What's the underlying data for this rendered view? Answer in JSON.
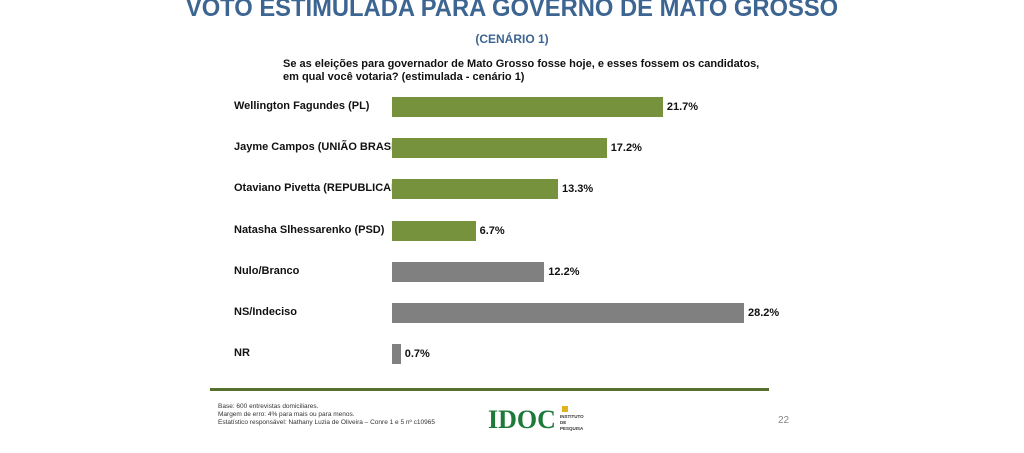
{
  "chart_data": {
    "type": "bar",
    "orientation": "horizontal",
    "title": "VOTO ESTIMULADA PARA GOVERNO DE MATO GROSSO",
    "subtitle": "(CENÁRIO 1)",
    "question": "Se as eleições para governador de Mato Grosso fosse hoje, e esses fossem os candidatos, em qual você votaria? (estimulada - cenário 1)",
    "categories": [
      "Wellington Fagundes (PL)",
      "Jayme Campos (UNIÃO BRASIL)",
      "Otaviano Pivetta (REPUBLICANOS)",
      "Natasha Slhessarenko (PSD)",
      "Nulo/Branco",
      "NS/Indeciso",
      "NR"
    ],
    "values": [
      21.7,
      17.2,
      13.3,
      6.7,
      12.2,
      28.2,
      0.7
    ],
    "labels": [
      "21.7%",
      "17.2%",
      "13.3%",
      "6.7%",
      "12.2%",
      "28.2%",
      "0.7%"
    ],
    "colors": [
      "#76923c",
      "#76923c",
      "#76923c",
      "#76923c",
      "#808080",
      "#808080",
      "#808080"
    ],
    "xlim": [
      0,
      28.2
    ]
  },
  "footer": {
    "lines": [
      "Base: 600 entrevistas domiciliares.",
      "Margem de erro: 4% para mais ou para menos.",
      "Estatístico responsável: Nathany Luzia de Oliveira – Conre 1 e 5 nº c10965"
    ],
    "logo": "IDOC",
    "logo_sub": "INSTITUTO DE PESQUISA",
    "page": "22"
  }
}
